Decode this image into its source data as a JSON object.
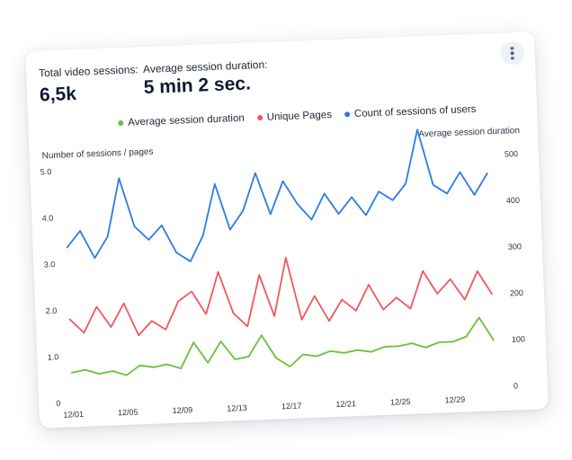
{
  "kpis": {
    "sessions_label": "Total video sessions:",
    "sessions_value": "6,5k",
    "duration_label": "Average session duration:",
    "duration_value": "5 min 2 sec."
  },
  "legend": [
    {
      "label": "Average session duration",
      "color": "#67c23a"
    },
    {
      "label": "Unique Pages",
      "color": "#f2575d"
    },
    {
      "label": "Count of sessions of users",
      "color": "#2c7be5"
    }
  ],
  "chart_data": {
    "type": "line",
    "ylabel_left": "Number of sessions / pages",
    "ylabel_right": "Average session duration",
    "ylim_left": [
      0,
      5
    ],
    "ylim_right": [
      0,
      500
    ],
    "yticks_left": [
      "0",
      "1.0",
      "2.0",
      "3.0",
      "4.0",
      "5.0"
    ],
    "yticks_right": [
      "0",
      "100",
      "200",
      "300",
      "400",
      "500"
    ],
    "x_ticks": [
      "12/01",
      "12/05",
      "12/09",
      "12/13",
      "12/17",
      "12/21",
      "12/25",
      "12/29"
    ],
    "grid": false,
    "legend_position": "top",
    "series": [
      {
        "name": "Count of sessions of users",
        "axis": "left",
        "color": "#2c7be5",
        "values": [
          3.35,
          3.7,
          3.1,
          3.55,
          4.8,
          3.75,
          3.45,
          3.75,
          3.15,
          2.95,
          3.5,
          4.6,
          3.6,
          4.0,
          4.8,
          3.9,
          4.6,
          4.1,
          3.75,
          4.3,
          3.85,
          4.2,
          3.8,
          4.3,
          4.1,
          4.45,
          5.6,
          4.4,
          4.2,
          4.65,
          4.15,
          4.6
        ]
      },
      {
        "name": "Unique Pages",
        "axis": "left",
        "color": "#f2575d",
        "values": [
          1.8,
          1.5,
          2.05,
          1.6,
          2.1,
          1.4,
          1.7,
          1.5,
          2.1,
          2.3,
          1.8,
          2.7,
          1.8,
          1.5,
          2.6,
          1.7,
          2.95,
          1.6,
          2.1,
          1.55,
          2.0,
          1.75,
          2.3,
          1.75,
          2.0,
          1.75,
          2.55,
          2.05,
          2.35,
          1.9,
          2.5,
          2.0
        ]
      },
      {
        "name": "Average session duration",
        "axis": "left",
        "color": "#67c23a",
        "values": [
          0.65,
          0.7,
          0.6,
          0.65,
          0.55,
          0.75,
          0.7,
          0.75,
          0.65,
          1.2,
          0.75,
          1.2,
          0.8,
          0.85,
          1.3,
          0.8,
          0.6,
          0.85,
          0.8,
          0.9,
          0.85,
          0.9,
          0.85,
          0.95,
          0.95,
          1.0,
          0.9,
          1.0,
          1.0,
          1.1,
          1.5,
          1.0
        ]
      }
    ]
  }
}
